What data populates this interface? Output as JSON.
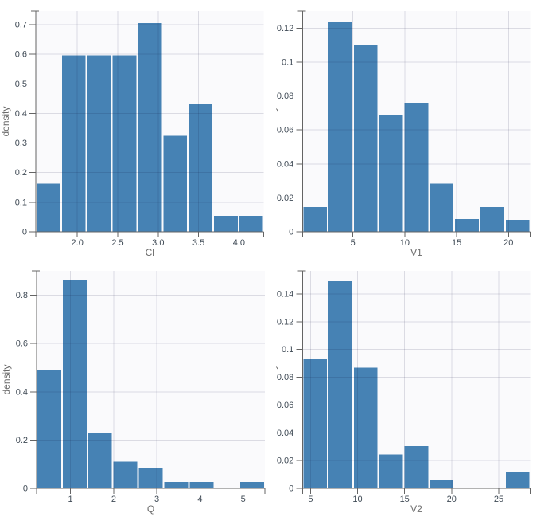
{
  "figure": {
    "kind": "histogram-grid",
    "rows": 2,
    "cols": 2,
    "shared_ylabel": "density"
  },
  "style": {
    "bar_fill": "#4682B4",
    "bar_gap_color": "#FFFFFF",
    "plot_background": "#FAFAFC",
    "grid_color": "rgba(18,18,64,0.13)",
    "axis_color": "#646464",
    "tick_label_color": "#404B56",
    "axis_title_color": "#6B6B6B"
  },
  "chart_data": [
    {
      "type": "bar",
      "variant": "histogram",
      "title": "",
      "xlabel": "Cl",
      "ylabel": "density",
      "grid": true,
      "legend": "none",
      "x_domain": [
        1.486,
        4.308
      ],
      "y_domain": [
        0,
        0.746
      ],
      "x_tick_values": [
        2.0,
        2.5,
        3.0,
        3.5,
        4.0
      ],
      "x_tick_labels": [
        "2.0",
        "2.5",
        "3.0",
        "3.5",
        "4.0"
      ],
      "y_tick_values": [
        0,
        0.1,
        0.2,
        0.3,
        0.4,
        0.5,
        0.6,
        0.7
      ],
      "y_tick_labels": [
        "0",
        "0.1",
        "0.2",
        "0.3",
        "0.4",
        "0.5",
        "0.6",
        "0.7"
      ],
      "bin_edges": [
        1.486,
        1.799,
        2.113,
        2.427,
        2.74,
        3.054,
        3.367,
        3.681,
        3.995,
        4.308
      ],
      "densities": [
        0.163,
        0.596,
        0.596,
        0.596,
        0.705,
        0.325,
        0.434,
        0.054,
        0.054
      ]
    },
    {
      "type": "bar",
      "variant": "histogram",
      "title": "",
      "xlabel": "V1",
      "ylabel": "density",
      "grid": true,
      "legend": "none",
      "x_domain": [
        0.14,
        22.1
      ],
      "y_domain": [
        0,
        0.13
      ],
      "x_tick_values": [
        5,
        10,
        15,
        20
      ],
      "x_tick_labels": [
        "5",
        "10",
        "15",
        "20"
      ],
      "y_tick_values": [
        0,
        0.02,
        0.04,
        0.06,
        0.08,
        0.1,
        0.12
      ],
      "y_tick_labels": [
        "0",
        "0.02",
        "0.04",
        "0.06",
        "0.08",
        "0.1",
        "0.12"
      ],
      "bin_edges": [
        0.14,
        2.58,
        5.02,
        7.46,
        9.9,
        12.34,
        14.78,
        17.22,
        19.66,
        22.1
      ],
      "densities": [
        0.0145,
        0.1235,
        0.11,
        0.069,
        0.076,
        0.0285,
        0.0075,
        0.0145,
        0.007
      ]
    },
    {
      "type": "bar",
      "variant": "histogram",
      "title": "",
      "xlabel": "Q",
      "ylabel": "density",
      "grid": true,
      "legend": "none",
      "x_domain": [
        0.214,
        5.504
      ],
      "y_domain": [
        0,
        0.901
      ],
      "x_tick_values": [
        1,
        2,
        3,
        4,
        5
      ],
      "x_tick_labels": [
        "1",
        "2",
        "3",
        "4",
        "5"
      ],
      "y_tick_values": [
        0,
        0.2,
        0.4,
        0.6,
        0.8
      ],
      "y_tick_labels": [
        "0",
        "0.2",
        "0.4",
        "0.6",
        "0.8"
      ],
      "bin_edges": [
        0.214,
        0.802,
        1.39,
        1.977,
        2.565,
        3.153,
        3.741,
        4.329,
        4.916,
        5.504
      ],
      "densities": [
        0.49,
        0.862,
        0.228,
        0.11,
        0.084,
        0.027,
        0.027,
        0,
        0.027
      ]
    },
    {
      "type": "bar",
      "variant": "histogram",
      "title": "",
      "xlabel": "V2",
      "ylabel": "density",
      "grid": true,
      "legend": "none",
      "x_domain": [
        4.15,
        28.36
      ],
      "y_domain": [
        0,
        0.1566
      ],
      "x_tick_values": [
        5,
        10,
        15,
        20,
        25
      ],
      "x_tick_labels": [
        "5",
        "10",
        "15",
        "20",
        "25"
      ],
      "y_tick_values": [
        0,
        0.02,
        0.04,
        0.06,
        0.08,
        0.1,
        0.12,
        0.14
      ],
      "y_tick_labels": [
        "0",
        "0.02",
        "0.04",
        "0.06",
        "0.08",
        "0.1",
        "0.12",
        "0.14"
      ],
      "bin_edges": [
        4.15,
        6.84,
        9.53,
        12.22,
        14.91,
        17.6,
        20.29,
        22.98,
        25.67,
        28.36
      ],
      "densities": [
        0.093,
        0.149,
        0.087,
        0.0245,
        0.0305,
        0.006,
        0,
        0,
        0.0117
      ]
    }
  ]
}
